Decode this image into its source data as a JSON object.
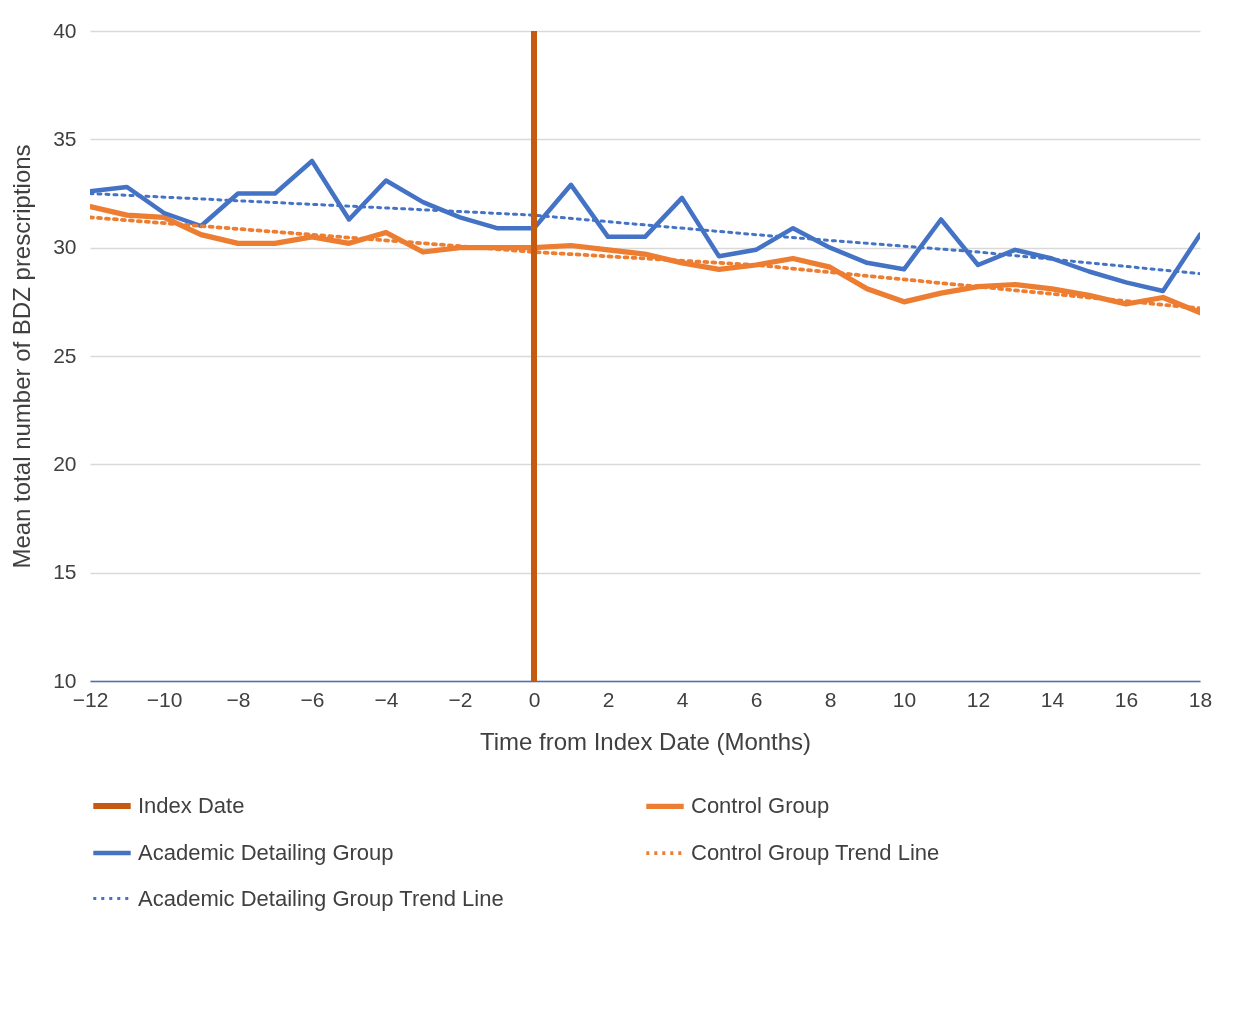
{
  "chart_data": {
    "type": "line",
    "xlabel": "Time from Index Date (Months)",
    "ylabel": "Mean total number of BDZ prescriptions",
    "x": [
      -12,
      -11,
      -10,
      -9,
      -8,
      -7,
      -6,
      -5,
      -4,
      -3,
      -2,
      -1,
      0,
      1,
      2,
      3,
      4,
      5,
      6,
      7,
      8,
      9,
      10,
      11,
      12,
      13,
      14,
      15,
      16,
      17,
      18
    ],
    "xlim": [
      -12,
      18
    ],
    "xticks": [
      -12,
      -10,
      -8,
      -6,
      -4,
      -2,
      0,
      2,
      4,
      6,
      8,
      10,
      12,
      14,
      16,
      18
    ],
    "ylim": [
      10,
      40
    ],
    "yticks": [
      10,
      15,
      20,
      25,
      30,
      35,
      40
    ],
    "grid": "y",
    "legend": "bottom",
    "ref_lines": [
      {
        "axis": "x",
        "value": 0,
        "label": "Index Date",
        "color": "#c55a11"
      }
    ],
    "series": [
      {
        "name": "Control Group",
        "color": "#ed7d31",
        "line_style": "solid",
        "values": [
          31.9,
          31.5,
          31.4,
          30.6,
          30.2,
          30.2,
          30.5,
          30.2,
          30.7,
          29.8,
          30.0,
          30.0,
          30.0,
          30.1,
          29.9,
          29.7,
          29.3,
          29.0,
          29.2,
          29.5,
          29.1,
          28.1,
          27.5,
          27.9,
          28.2,
          28.3,
          28.1,
          27.8,
          27.4,
          27.7,
          27.0
        ]
      },
      {
        "name": "Academic Detailing Group",
        "color": "#4472c4",
        "line_style": "solid",
        "values": [
          32.6,
          32.8,
          31.6,
          31.0,
          32.5,
          32.5,
          34.0,
          31.3,
          33.1,
          32.1,
          31.4,
          30.9,
          30.9,
          32.9,
          30.5,
          30.5,
          32.3,
          29.6,
          29.9,
          30.9,
          30.0,
          29.3,
          29.0,
          31.3,
          29.2,
          29.9,
          29.5,
          28.9,
          28.4,
          28.0,
          30.6
        ]
      },
      {
        "name": "Control Group Trend Line",
        "color": "#ed7d31",
        "line_style": "dotted",
        "x": [
          -12,
          -6,
          0,
          6,
          12,
          18
        ],
        "values": [
          31.4,
          30.6,
          29.8,
          29.2,
          28.2,
          27.2
        ]
      },
      {
        "name": "Academic Detailing Group Trend Line",
        "color": "#4472c4",
        "line_style": "dotted",
        "x": [
          -12,
          -6,
          0,
          6,
          12,
          18
        ],
        "values": [
          32.5,
          32.0,
          31.5,
          30.6,
          29.8,
          28.8
        ]
      }
    ]
  }
}
